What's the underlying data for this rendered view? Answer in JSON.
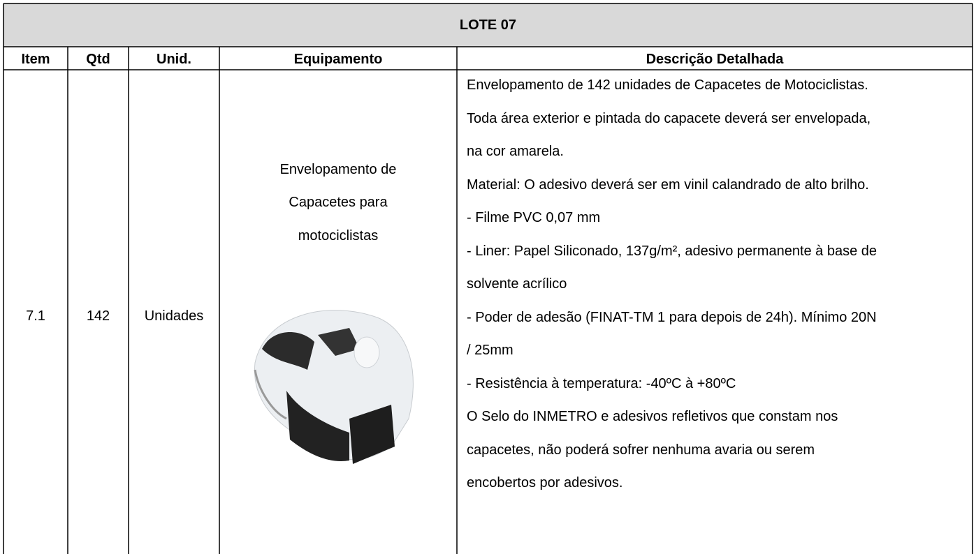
{
  "header": {
    "title": "LOTE 07"
  },
  "table": {
    "columns": [
      "Item",
      "Qtd",
      "Unid.",
      "Equipamento",
      "Descrição Detalhada"
    ],
    "rows": [
      {
        "item": "7.1",
        "qtd": "142",
        "unid": "Unidades",
        "equipamento": [
          "Envelopamento de",
          "Capacetes para",
          "motociclistas"
        ],
        "descricao": [
          "Envelopamento de 142 unidades de Capacetes de Motociclistas.",
          "Toda área exterior e pintada do capacete deverá ser envelopada,",
          "na cor amarela.",
          "Material: O adesivo deverá ser em vinil calandrado de alto brilho.",
          "- Filme PVC 0,07 mm",
          "- Liner: Papel Siliconado, 137g/m², adesivo permanente à base de",
          "solvente acrílico",
          "- Poder de adesão (FINAT-TM 1 para depois de 24h). Mínimo 20N",
          "/ 25mm",
          "- Resistência à temperatura: -40ºC à +80ºC",
          "O Selo do INMETRO e adesivos refletivos que constam nos",
          "capacetes, não poderá sofrer nenhuma avaria ou serem",
          "encobertos por adesivos."
        ]
      }
    ]
  }
}
